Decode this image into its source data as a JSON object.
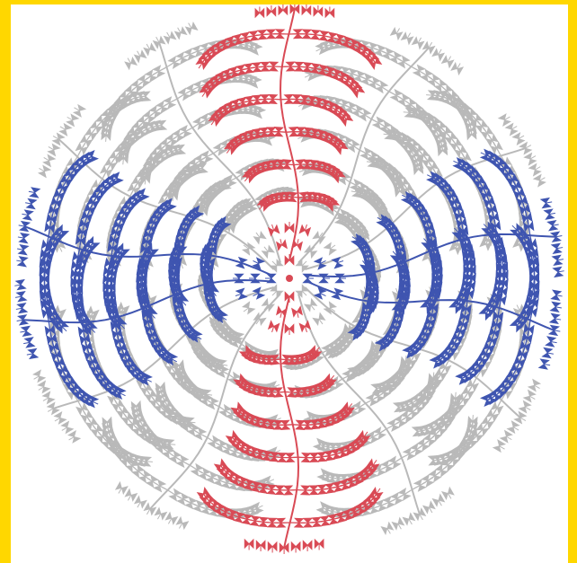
{
  "colors": {
    "border": "#ffd700",
    "red": "#d94a55",
    "blue": "#3f55b0",
    "gray": "#b9b9b9",
    "background": "#ffffff"
  },
  "figure": {
    "description_arms": [
      {
        "name": "red-arm-top",
        "color": "red"
      },
      {
        "name": "red-arm-bottom",
        "color": "red"
      },
      {
        "name": "blue-arm-left",
        "color": "blue"
      },
      {
        "name": "blue-arm-right",
        "color": "blue"
      }
    ]
  }
}
